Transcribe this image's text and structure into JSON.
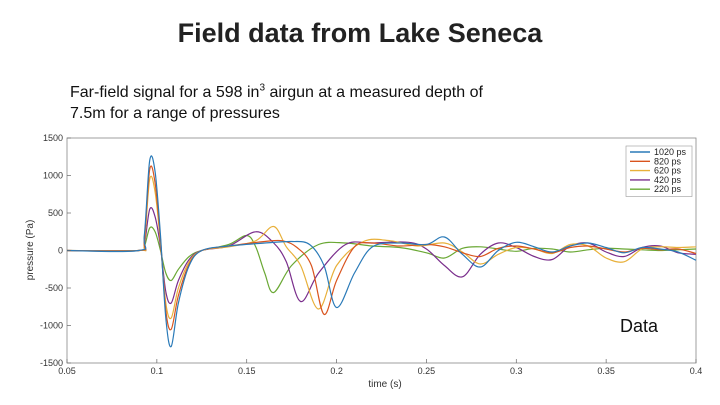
{
  "slide": {
    "title": "Field data from Lake Seneca",
    "subtitle_part1": "Far-field signal for a 598 in",
    "subtitle_sup": "3",
    "subtitle_part2": " airgun at a measured depth of 7.5m for a range of pressures",
    "annotation": "Data"
  },
  "chart_data": {
    "type": "line",
    "xlabel": "time (s)",
    "ylabel": "pressure (Pa)",
    "xlim": [
      0.05,
      0.4
    ],
    "ylim": [
      -1500,
      1500
    ],
    "xticks": [
      "0.05",
      "0.1",
      "0.15",
      "0.2",
      "0.25",
      "0.3",
      "0.35",
      "0.4"
    ],
    "yticks": [
      "1500",
      "1000",
      "500",
      "0",
      "-500",
      "-1000",
      "-1500"
    ],
    "grid": false,
    "legend_position": "top-right",
    "series": [
      {
        "name": "1020 ps",
        "color": "#2a7ab8",
        "x": [
          0.05,
          0.09,
          0.093,
          0.096,
          0.099,
          0.102,
          0.105,
          0.108,
          0.112,
          0.118,
          0.125,
          0.14,
          0.16,
          0.175,
          0.185,
          0.193,
          0.2,
          0.21,
          0.22,
          0.235,
          0.25,
          0.26,
          0.27,
          0.28,
          0.29,
          0.3,
          0.31,
          0.32,
          0.33,
          0.34,
          0.35,
          0.36,
          0.37,
          0.38,
          0.39,
          0.4
        ],
        "y": [
          0,
          0,
          200,
          1200,
          1050,
          200,
          -900,
          -1280,
          -700,
          -200,
          0,
          60,
          100,
          120,
          80,
          -200,
          -760,
          -300,
          50,
          100,
          80,
          180,
          -50,
          -220,
          0,
          110,
          50,
          -20,
          60,
          100,
          40,
          -30,
          40,
          20,
          -20,
          -130
        ]
      },
      {
        "name": "820 ps",
        "color": "#d9541e",
        "x": [
          0.05,
          0.09,
          0.093,
          0.096,
          0.099,
          0.102,
          0.105,
          0.108,
          0.112,
          0.118,
          0.125,
          0.14,
          0.16,
          0.17,
          0.178,
          0.186,
          0.193,
          0.2,
          0.21,
          0.22,
          0.235,
          0.25,
          0.26,
          0.27,
          0.28,
          0.29,
          0.3,
          0.31,
          0.32,
          0.33,
          0.34,
          0.35,
          0.36,
          0.37,
          0.38,
          0.39,
          0.4
        ],
        "y": [
          0,
          0,
          150,
          1080,
          900,
          150,
          -800,
          -1050,
          -600,
          -180,
          0,
          60,
          120,
          130,
          40,
          -200,
          -850,
          -400,
          50,
          100,
          60,
          80,
          50,
          -30,
          -80,
          30,
          60,
          20,
          -30,
          40,
          60,
          20,
          -20,
          30,
          10,
          20,
          -40
        ]
      },
      {
        "name": "620 ps",
        "color": "#e8b03a",
        "x": [
          0.05,
          0.09,
          0.093,
          0.096,
          0.099,
          0.102,
          0.105,
          0.108,
          0.112,
          0.118,
          0.125,
          0.14,
          0.155,
          0.165,
          0.172,
          0.18,
          0.19,
          0.2,
          0.215,
          0.23,
          0.245,
          0.26,
          0.27,
          0.28,
          0.29,
          0.3,
          0.31,
          0.32,
          0.33,
          0.34,
          0.35,
          0.36,
          0.37,
          0.38,
          0.39,
          0.4
        ],
        "y": [
          0,
          0,
          100,
          950,
          780,
          100,
          -700,
          -900,
          -500,
          -150,
          0,
          50,
          130,
          320,
          50,
          -200,
          -780,
          -200,
          120,
          130,
          60,
          100,
          -20,
          -180,
          -50,
          40,
          20,
          -40,
          80,
          60,
          -100,
          -150,
          20,
          50,
          40,
          50
        ]
      },
      {
        "name": "420 ps",
        "color": "#7a2e8c",
        "x": [
          0.05,
          0.09,
          0.093,
          0.096,
          0.099,
          0.102,
          0.105,
          0.108,
          0.112,
          0.118,
          0.125,
          0.14,
          0.155,
          0.165,
          0.172,
          0.18,
          0.19,
          0.205,
          0.22,
          0.24,
          0.25,
          0.26,
          0.27,
          0.28,
          0.29,
          0.3,
          0.31,
          0.32,
          0.33,
          0.34,
          0.35,
          0.36,
          0.37,
          0.38,
          0.39,
          0.4
        ],
        "y": [
          0,
          0,
          80,
          550,
          450,
          50,
          -550,
          -700,
          -400,
          -120,
          0,
          60,
          250,
          100,
          -150,
          -680,
          -300,
          80,
          100,
          110,
          20,
          -200,
          -350,
          -50,
          100,
          40,
          -80,
          -120,
          60,
          100,
          -20,
          -80,
          40,
          60,
          -30,
          -50
        ]
      },
      {
        "name": "220 ps",
        "color": "#6aa834",
        "x": [
          0.05,
          0.09,
          0.093,
          0.096,
          0.099,
          0.102,
          0.105,
          0.108,
          0.112,
          0.118,
          0.125,
          0.14,
          0.15,
          0.155,
          0.16,
          0.165,
          0.175,
          0.19,
          0.205,
          0.22,
          0.235,
          0.25,
          0.26,
          0.27,
          0.28,
          0.29,
          0.3,
          0.31,
          0.32,
          0.33,
          0.34,
          0.35,
          0.36,
          0.37,
          0.38,
          0.39,
          0.4
        ],
        "y": [
          0,
          0,
          50,
          300,
          250,
          0,
          -300,
          -400,
          -250,
          -80,
          0,
          80,
          200,
          50,
          -300,
          -560,
          -200,
          80,
          100,
          60,
          40,
          -30,
          -100,
          30,
          50,
          20,
          -10,
          30,
          20,
          -20,
          10,
          30,
          20,
          10,
          0,
          10,
          20
        ]
      }
    ]
  }
}
